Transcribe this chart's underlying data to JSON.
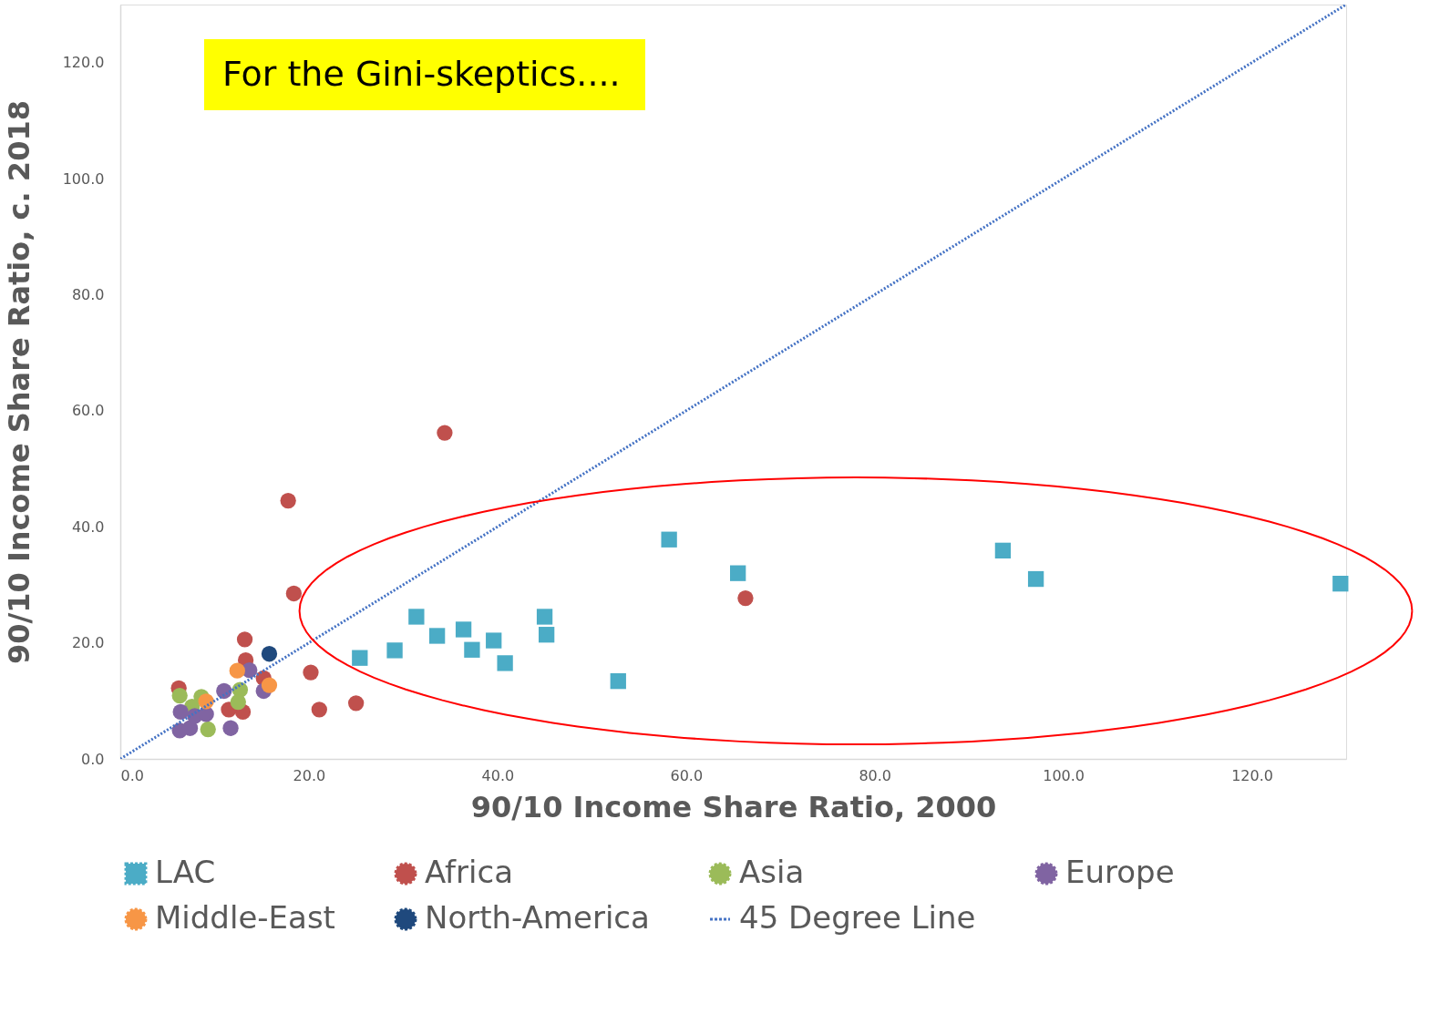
{
  "chart_data": {
    "type": "scatter",
    "xlabel": "90/10 Income Share Ratio, 2000",
    "ylabel": "90/10 Income Share Ratio, c. 2018",
    "annotations": [
      "For the Gini-skeptics...."
    ],
    "xlim": [
      0,
      130
    ],
    "ylim": [
      0,
      130
    ],
    "xticks": [
      {
        "value": 0,
        "label": "0.0"
      },
      {
        "value": 20,
        "label": "20.0"
      },
      {
        "value": 40,
        "label": "40.0"
      },
      {
        "value": 60,
        "label": "60.0"
      },
      {
        "value": 80,
        "label": "80.0"
      },
      {
        "value": 100,
        "label": "100.0"
      },
      {
        "value": 120,
        "label": "120.0"
      }
    ],
    "yticks": [
      {
        "value": 0,
        "label": "0.0"
      },
      {
        "value": 20,
        "label": "20.0"
      },
      {
        "value": 40,
        "label": "40.0"
      },
      {
        "value": 60,
        "label": "60.0"
      },
      {
        "value": 80,
        "label": "80.0"
      },
      {
        "value": 100,
        "label": "100.0"
      },
      {
        "value": 120,
        "label": "120.0"
      }
    ],
    "grid": false,
    "legend": "bottom",
    "series": [
      {
        "name": "LAC",
        "color": "#4bacc6",
        "marker": "square",
        "x": [
          25.4,
          29.1,
          31.4,
          33.6,
          36.4,
          37.3,
          39.6,
          40.8,
          45.0,
          45.2,
          52.8,
          58.2,
          65.5,
          93.6,
          97.1,
          129.4
        ],
        "values": [
          17.4,
          18.7,
          24.5,
          21.2,
          22.3,
          18.8,
          20.4,
          16.5,
          24.5,
          21.4,
          13.4,
          37.8,
          32.0,
          35.9,
          31.0,
          30.2
        ]
      },
      {
        "name": "Africa",
        "color": "#c0504d",
        "marker": "circle",
        "x": [
          34.4,
          17.8,
          18.4,
          66.3,
          13.2,
          13.3,
          15.2,
          11.5,
          13.0,
          6.2,
          20.2,
          21.1,
          25.0
        ],
        "values": [
          56.2,
          44.5,
          28.5,
          27.7,
          20.6,
          17.0,
          13.9,
          8.5,
          8.1,
          12.2,
          14.9,
          8.5,
          9.6
        ]
      },
      {
        "name": "Asia",
        "color": "#9bbb59",
        "marker": "circle",
        "x": [
          6.3,
          8.6,
          12.7,
          12.5,
          9.3,
          7.6
        ],
        "values": [
          10.9,
          10.7,
          11.9,
          9.8,
          5.1,
          9.0
        ]
      },
      {
        "name": "Europe",
        "color": "#8064a2",
        "marker": "circle",
        "x": [
          6.4,
          6.3,
          7.4,
          7.9,
          9.1,
          11.0,
          13.7,
          15.2,
          11.7
        ],
        "values": [
          8.1,
          4.9,
          5.3,
          7.4,
          7.7,
          11.7,
          15.3,
          11.7,
          5.3
        ]
      },
      {
        "name": "Middle-East",
        "color": "#f79646",
        "marker": "circle",
        "x": [
          12.4,
          9.1,
          15.8
        ],
        "values": [
          15.2,
          9.9,
          12.7
        ]
      },
      {
        "name": "North-America",
        "color": "#1f497d",
        "marker": "circle",
        "x": [
          15.8
        ],
        "values": [
          18.1
        ]
      },
      {
        "name": "45 Degree Line",
        "type": "line",
        "color": "#4472c4",
        "line_style": "dotted",
        "marker": "none",
        "x": [
          0,
          130
        ],
        "values": [
          0,
          130
        ]
      }
    ]
  }
}
